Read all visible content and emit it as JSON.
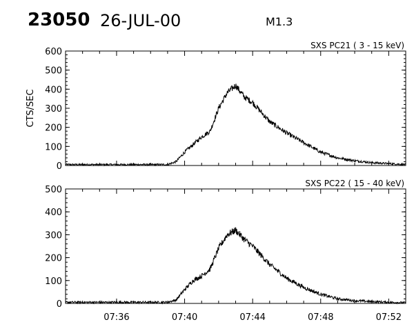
{
  "header": {
    "event_id": "23050",
    "date": "26-JUL-00",
    "flare_class": "M1.3"
  },
  "chart_data": [
    {
      "type": "line",
      "title": "SXS PC21  (  3 - 15 keV)",
      "ylabel": "CTS/SEC",
      "xlabel": "",
      "xlim": [
        "07:33",
        "07:53"
      ],
      "ylim": [
        0,
        600
      ],
      "yticks": [
        0,
        100,
        200,
        300,
        400,
        500,
        600
      ],
      "xticks": [
        "07:36",
        "07:40",
        "07:44",
        "07:48",
        "07:52"
      ],
      "grid": false,
      "series": [
        {
          "x": [
            "07:33",
            "07:39",
            "07:39.5",
            "07:40",
            "07:40.5",
            "07:41",
            "07:41.5",
            "07:42",
            "07:42.5",
            "07:43",
            "07:43.5",
            "07:44",
            "07:45",
            "07:46",
            "07:47",
            "07:48",
            "07:49",
            "07:50",
            "07:51",
            "07:52",
            "07:53"
          ],
          "y": [
            5,
            5,
            20,
            70,
            110,
            150,
            180,
            300,
            380,
            420,
            360,
            330,
            230,
            170,
            120,
            70,
            40,
            25,
            15,
            10,
            5
          ]
        }
      ]
    },
    {
      "type": "line",
      "title": "SXS PC22  ( 15 - 40 keV)",
      "ylabel": "",
      "xlabel": "",
      "xlim": [
        "07:33",
        "07:53"
      ],
      "ylim": [
        0,
        500
      ],
      "yticks": [
        0,
        100,
        200,
        300,
        400,
        500
      ],
      "xticks": [
        "07:36",
        "07:40",
        "07:44",
        "07:48",
        "07:52"
      ],
      "grid": false,
      "series": [
        {
          "x": [
            "07:33",
            "07:39",
            "07:39.5",
            "07:40",
            "07:40.5",
            "07:41",
            "07:41.5",
            "07:42",
            "07:42.5",
            "07:43",
            "07:43.5",
            "07:44",
            "07:45",
            "07:46",
            "07:47",
            "07:48",
            "07:49",
            "07:50",
            "07:51",
            "07:52",
            "07:53"
          ],
          "y": [
            5,
            5,
            15,
            60,
            100,
            120,
            150,
            240,
            300,
            320,
            280,
            250,
            170,
            110,
            70,
            40,
            20,
            12,
            8,
            5,
            3
          ]
        }
      ]
    }
  ]
}
